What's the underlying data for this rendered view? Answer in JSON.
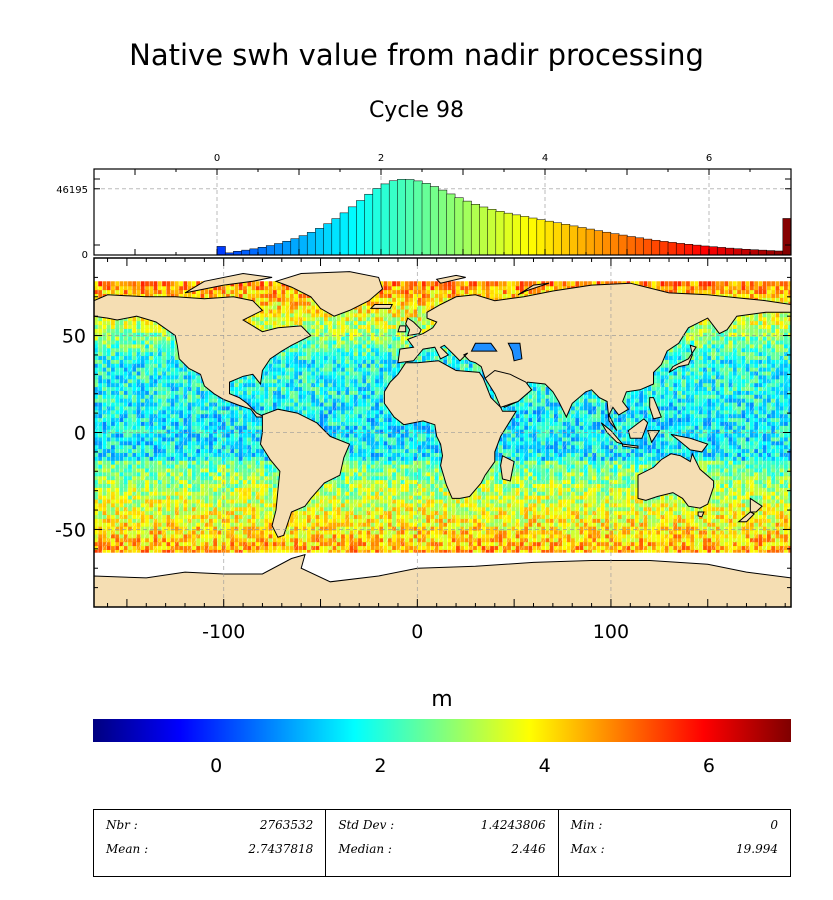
{
  "title": "Native swh value from nadir processing",
  "subtitle": "Cycle 98",
  "colorbar": {
    "label": "m",
    "ticks": [
      "0",
      "2",
      "4",
      "6"
    ],
    "range": [
      -1.5,
      7
    ],
    "colormap": "jet"
  },
  "chart_data": [
    {
      "type": "bar",
      "name": "histogram",
      "x_ticks": [
        "0",
        "2",
        "4",
        "6"
      ],
      "y_ticks": [
        "46195",
        "0"
      ],
      "xlim": [
        -1.5,
        7
      ],
      "ylim": [
        0,
        60000
      ],
      "grid": true,
      "bins": [
        {
          "x": 0.0,
          "count": 6000
        },
        {
          "x": 0.1,
          "count": 1500
        },
        {
          "x": 0.2,
          "count": 2600
        },
        {
          "x": 0.3,
          "count": 3400
        },
        {
          "x": 0.4,
          "count": 4300
        },
        {
          "x": 0.5,
          "count": 5400
        },
        {
          "x": 0.6,
          "count": 6600
        },
        {
          "x": 0.7,
          "count": 8000
        },
        {
          "x": 0.8,
          "count": 9600
        },
        {
          "x": 0.9,
          "count": 11400
        },
        {
          "x": 1.0,
          "count": 13500
        },
        {
          "x": 1.1,
          "count": 15800
        },
        {
          "x": 1.2,
          "count": 18600
        },
        {
          "x": 1.3,
          "count": 21800
        },
        {
          "x": 1.4,
          "count": 25400
        },
        {
          "x": 1.5,
          "count": 29400
        },
        {
          "x": 1.6,
          "count": 33600
        },
        {
          "x": 1.7,
          "count": 38000
        },
        {
          "x": 1.8,
          "count": 42400
        },
        {
          "x": 1.9,
          "count": 46400
        },
        {
          "x": 2.0,
          "count": 49600
        },
        {
          "x": 2.1,
          "count": 51800
        },
        {
          "x": 2.2,
          "count": 52800
        },
        {
          "x": 2.3,
          "count": 52700
        },
        {
          "x": 2.4,
          "count": 51700
        },
        {
          "x": 2.5,
          "count": 50000
        },
        {
          "x": 2.6,
          "count": 47800
        },
        {
          "x": 2.7,
          "count": 45300
        },
        {
          "x": 2.8,
          "count": 42600
        },
        {
          "x": 2.9,
          "count": 40000
        },
        {
          "x": 3.0,
          "count": 37600
        },
        {
          "x": 3.1,
          "count": 35400
        },
        {
          "x": 3.2,
          "count": 33500
        },
        {
          "x": 3.3,
          "count": 31900
        },
        {
          "x": 3.4,
          "count": 30500
        },
        {
          "x": 3.5,
          "count": 29200
        },
        {
          "x": 3.6,
          "count": 28000
        },
        {
          "x": 3.7,
          "count": 26900
        },
        {
          "x": 3.8,
          "count": 25800
        },
        {
          "x": 3.9,
          "count": 24700
        },
        {
          "x": 4.0,
          "count": 23600
        },
        {
          "x": 4.1,
          "count": 22500
        },
        {
          "x": 4.2,
          "count": 21400
        },
        {
          "x": 4.3,
          "count": 20300
        },
        {
          "x": 4.4,
          "count": 19200
        },
        {
          "x": 4.5,
          "count": 18100
        },
        {
          "x": 4.6,
          "count": 17000
        },
        {
          "x": 4.7,
          "count": 15900
        },
        {
          "x": 4.8,
          "count": 14900
        },
        {
          "x": 4.9,
          "count": 13900
        },
        {
          "x": 5.0,
          "count": 12900
        },
        {
          "x": 5.1,
          "count": 12000
        },
        {
          "x": 5.2,
          "count": 11100
        },
        {
          "x": 5.3,
          "count": 10300
        },
        {
          "x": 5.4,
          "count": 9500
        },
        {
          "x": 5.5,
          "count": 8800
        },
        {
          "x": 5.6,
          "count": 8100
        },
        {
          "x": 5.7,
          "count": 7500
        },
        {
          "x": 5.8,
          "count": 6900
        },
        {
          "x": 5.9,
          "count": 6300
        },
        {
          "x": 6.0,
          "count": 5800
        },
        {
          "x": 6.1,
          "count": 5300
        },
        {
          "x": 6.2,
          "count": 4800
        },
        {
          "x": 6.3,
          "count": 4400
        },
        {
          "x": 6.4,
          "count": 4000
        },
        {
          "x": 6.5,
          "count": 3700
        },
        {
          "x": 6.6,
          "count": 3400
        },
        {
          "x": 6.7,
          "count": 3100
        },
        {
          "x": 6.8,
          "count": 2800
        },
        {
          "x": 6.9,
          "count": 25500
        }
      ]
    },
    {
      "type": "heatmap",
      "name": "map",
      "x_ticks": [
        "-100",
        "0",
        "100"
      ],
      "y_ticks": [
        "50",
        "0",
        "-50"
      ],
      "xlim": [
        -167,
        193
      ],
      "ylim": [
        -90,
        90
      ],
      "grid": true
    }
  ],
  "stats": [
    [
      {
        "label": "Nbr :",
        "value": "2763532"
      },
      {
        "label": "Mean :",
        "value": "2.7437818"
      }
    ],
    [
      {
        "label": "Std Dev :",
        "value": "1.4243806"
      },
      {
        "label": "Median :",
        "value": "2.446"
      }
    ],
    [
      {
        "label": "Min :",
        "value": "0"
      },
      {
        "label": "Max :",
        "value": "19.994"
      }
    ]
  ],
  "colors": {
    "land": "#f5deb3",
    "ice": "#ffffff",
    "coast": "#000000"
  }
}
